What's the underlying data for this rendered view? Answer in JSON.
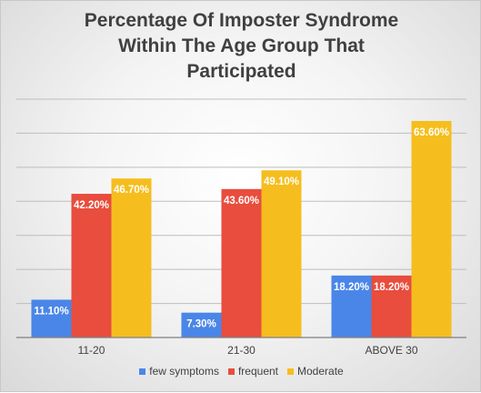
{
  "chart_data": {
    "type": "bar",
    "title": "Percentage Of Imposter Syndrome\nWithin The Age Group That\nParticipated",
    "categories": [
      "11-20",
      "21-30",
      "ABOVE 30"
    ],
    "series": [
      {
        "name": "few symptoms",
        "values": [
          11.1,
          7.3,
          18.2
        ],
        "labels": [
          "11.10%",
          "7.30%",
          "18.20%"
        ],
        "color": "#4a86e8"
      },
      {
        "name": "frequent",
        "values": [
          42.2,
          43.6,
          18.2
        ],
        "labels": [
          "42.20%",
          "43.60%",
          "18.20%"
        ],
        "color": "#e84d3d"
      },
      {
        "name": "Moderate",
        "values": [
          46.7,
          49.1,
          63.6
        ],
        "labels": [
          "46.70%",
          "49.10%",
          "63.60%"
        ],
        "color": "#f5be1e"
      }
    ],
    "ylim": [
      0,
      70
    ],
    "y_tick_step": 10,
    "grid": true,
    "legend_position": "bottom"
  }
}
